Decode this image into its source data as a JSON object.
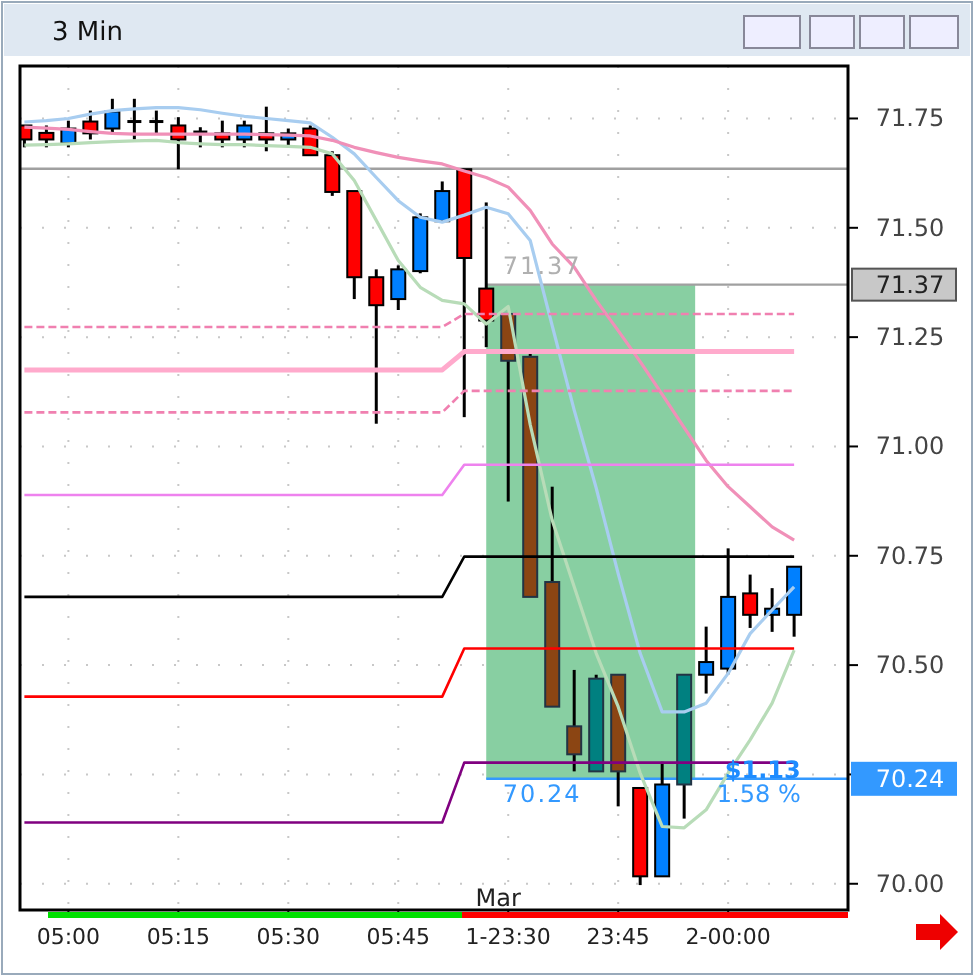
{
  "chart_data": {
    "type": "candlestick",
    "title": "3 Min",
    "categories": [
      null,
      null,
      "05:00",
      null,
      null,
      null,
      null,
      "05:15",
      null,
      null,
      null,
      null,
      "05:30",
      null,
      null,
      null,
      null,
      "05:45",
      null,
      null,
      null,
      null,
      "1-23:30",
      null,
      null,
      null,
      null,
      "23:45",
      null,
      null,
      null,
      null,
      "2-00:00",
      null,
      null,
      null
    ],
    "ohlc": [
      [
        71.734,
        71.734,
        71.684,
        71.702
      ],
      [
        71.717,
        71.734,
        71.684,
        71.702
      ],
      [
        71.693,
        71.745,
        71.684,
        71.727
      ],
      [
        71.743,
        71.768,
        71.702,
        71.716
      ],
      [
        71.727,
        71.795,
        71.714,
        71.766
      ],
      [
        71.743,
        71.795,
        71.702,
        71.743
      ],
      [
        71.743,
        71.768,
        71.714,
        71.743
      ],
      [
        71.734,
        71.753,
        71.634,
        71.702
      ],
      [
        71.719,
        71.73,
        71.684,
        71.719
      ],
      [
        71.716,
        71.745,
        71.684,
        71.702
      ],
      [
        71.702,
        71.745,
        71.684,
        71.734
      ],
      [
        71.716,
        71.777,
        71.675,
        71.702
      ],
      [
        71.702,
        71.727,
        71.684,
        71.716
      ],
      [
        71.727,
        71.734,
        71.666,
        71.666
      ],
      [
        71.666,
        71.675,
        71.573,
        71.582
      ],
      [
        71.584,
        71.584,
        71.337,
        71.387
      ],
      [
        71.387,
        71.405,
        71.052,
        71.323
      ],
      [
        71.337,
        71.414,
        71.312,
        71.405
      ],
      [
        71.401,
        71.533,
        71.396,
        71.524
      ],
      [
        71.515,
        71.606,
        71.513,
        71.584
      ],
      [
        71.634,
        71.634,
        71.067,
        71.431
      ],
      [
        71.361,
        71.558,
        71.227,
        71.288
      ],
      [
        71.303,
        71.303,
        70.874,
        71.196
      ],
      [
        71.205,
        71.215,
        70.656,
        70.656
      ],
      [
        70.69,
        70.908,
        70.405,
        70.405
      ],
      [
        70.36,
        70.489,
        70.257,
        70.296
      ],
      [
        70.257,
        70.478,
        70.257,
        70.469
      ],
      [
        70.478,
        70.478,
        70.177,
        70.257
      ],
      [
        70.219,
        70.219,
        69.997,
        70.017
      ],
      [
        70.017,
        70.279,
        70.017,
        70.227
      ],
      [
        70.227,
        70.478,
        70.149,
        70.478
      ],
      [
        70.478,
        70.588,
        70.435,
        70.507
      ],
      [
        70.492,
        70.767,
        70.479,
        70.656
      ],
      [
        70.664,
        70.707,
        70.585,
        70.615
      ],
      [
        70.615,
        70.676,
        70.576,
        70.629
      ],
      [
        70.615,
        70.725,
        70.565,
        70.725
      ]
    ],
    "colors": [
      "#ff0000",
      "#ff0000",
      "#0080ff",
      "#ff0000",
      "#0080ff",
      "#000000",
      "#000000",
      "#ff0000",
      "#000000",
      "#ff0000",
      "#0080ff",
      "#ff0000",
      "#0080ff",
      "#ff0000",
      "#ff0000",
      "#ff0000",
      "#ff0000",
      "#0080ff",
      "#0080ff",
      "#0080ff",
      "#ff0000",
      "#ff0000",
      "#8b4513",
      "#8b4513",
      "#8b4513",
      "#8b4513",
      "#008080",
      "#8b4513",
      "#ff0000",
      "#0080ff",
      "#008080",
      "#0080ff",
      "#0080ff",
      "#ff0000",
      "#0080ff",
      "#0080ff"
    ],
    "series": [
      {
        "type": "line",
        "color": "#a8cdf0",
        "values": [
          71.742,
          71.745,
          71.75,
          71.76,
          71.768,
          71.772,
          71.775,
          71.775,
          71.77,
          71.762,
          71.755,
          71.75,
          71.745,
          71.74,
          71.707,
          71.669,
          71.615,
          71.562,
          71.524,
          71.513,
          71.529,
          71.547,
          71.532,
          71.471,
          71.276,
          71.083,
          70.905,
          70.709,
          70.527,
          70.393,
          70.393,
          70.413,
          70.481,
          70.572,
          70.626,
          70.679
        ]
      },
      {
        "type": "line",
        "color": "#f090b8",
        "values": [
          71.73,
          71.728,
          71.725,
          71.72,
          71.716,
          71.714,
          71.714,
          71.714,
          71.714,
          71.714,
          71.714,
          71.713,
          71.712,
          71.71,
          71.7,
          71.684,
          71.672,
          71.661,
          71.653,
          71.646,
          71.63,
          71.615,
          71.593,
          71.54,
          71.463,
          71.41,
          71.334,
          71.265,
          71.194,
          71.119,
          71.043,
          70.968,
          70.908,
          70.862,
          70.816,
          70.786
        ]
      },
      {
        "type": "line",
        "color": "#b8dcb8",
        "values": [
          71.689,
          71.69,
          71.692,
          71.695,
          71.697,
          71.699,
          71.7,
          71.695,
          71.692,
          71.69,
          71.69,
          71.688,
          71.686,
          71.684,
          71.669,
          71.608,
          71.517,
          71.425,
          71.364,
          71.334,
          71.326,
          71.28,
          71.32,
          71.05,
          70.831,
          70.679,
          70.527,
          70.405,
          70.253,
          70.131,
          70.128,
          70.169,
          70.253,
          70.329,
          70.413,
          70.534
        ]
      },
      {
        "type": "step",
        "color": "#ee82ee",
        "values": [
          70.889,
          70.889,
          70.889,
          70.889,
          70.889,
          70.889,
          70.889,
          70.889,
          70.889,
          70.889,
          70.889,
          70.889,
          70.889,
          70.889,
          70.889,
          70.889,
          70.889,
          70.889,
          70.889,
          70.889,
          70.958,
          70.958,
          70.958,
          70.958,
          70.958,
          70.958,
          70.958,
          70.958,
          70.958,
          70.958,
          70.958,
          70.958,
          70.958,
          70.958,
          70.958,
          70.958
        ]
      },
      {
        "type": "step",
        "color": "#000000",
        "values": [
          70.656,
          70.656,
          70.656,
          70.656,
          70.656,
          70.656,
          70.656,
          70.656,
          70.656,
          70.656,
          70.656,
          70.656,
          70.656,
          70.656,
          70.656,
          70.656,
          70.656,
          70.656,
          70.656,
          70.656,
          70.748,
          70.748,
          70.748,
          70.748,
          70.748,
          70.748,
          70.748,
          70.748,
          70.748,
          70.748,
          70.748,
          70.748,
          70.748,
          70.748,
          70.748,
          70.748
        ]
      },
      {
        "type": "step",
        "color": "#ff0000",
        "values": [
          70.428,
          70.428,
          70.428,
          70.428,
          70.428,
          70.428,
          70.428,
          70.428,
          70.428,
          70.428,
          70.428,
          70.428,
          70.428,
          70.428,
          70.428,
          70.428,
          70.428,
          70.428,
          70.428,
          70.428,
          70.538,
          70.538,
          70.538,
          70.538,
          70.538,
          70.538,
          70.538,
          70.538,
          70.538,
          70.538,
          70.538,
          70.538,
          70.538,
          70.538,
          70.538,
          70.538
        ]
      },
      {
        "type": "step",
        "color": "#800080",
        "values": [
          70.14,
          70.14,
          70.14,
          70.14,
          70.14,
          70.14,
          70.14,
          70.14,
          70.14,
          70.14,
          70.14,
          70.14,
          70.14,
          70.14,
          70.14,
          70.14,
          70.14,
          70.14,
          70.14,
          70.14,
          70.277,
          70.277,
          70.277,
          70.277,
          70.277,
          70.277,
          70.277,
          70.277,
          70.277,
          70.277,
          70.277,
          70.277,
          70.277,
          70.277,
          70.277,
          70.277
        ]
      },
      {
        "type": "step",
        "color": "#ffaacc",
        "values": [
          71.175,
          71.175,
          71.175,
          71.175,
          71.175,
          71.175,
          71.175,
          71.175,
          71.175,
          71.175,
          71.175,
          71.175,
          71.175,
          71.175,
          71.175,
          71.175,
          71.175,
          71.175,
          71.175,
          71.175,
          71.217,
          71.217,
          71.217,
          71.217,
          71.217,
          71.217,
          71.217,
          71.217,
          71.217,
          71.217,
          71.217,
          71.217,
          71.217,
          71.217,
          71.217,
          71.217
        ]
      },
      {
        "type": "step",
        "color": "#f080b0",
        "line_style": "dashed",
        "values": [
          71.273,
          71.273,
          71.273,
          71.273,
          71.273,
          71.273,
          71.273,
          71.273,
          71.273,
          71.273,
          71.273,
          71.273,
          71.273,
          71.273,
          71.273,
          71.273,
          71.273,
          71.273,
          71.273,
          71.273,
          71.303,
          71.303,
          71.303,
          71.303,
          71.303,
          71.303,
          71.303,
          71.303,
          71.303,
          71.303,
          71.303,
          71.303,
          71.303,
          71.303,
          71.303,
          71.303
        ]
      },
      {
        "type": "step",
        "color": "#f080b0",
        "line_style": "dashed",
        "values": [
          71.078,
          71.078,
          71.078,
          71.078,
          71.078,
          71.078,
          71.078,
          71.078,
          71.078,
          71.078,
          71.078,
          71.078,
          71.078,
          71.078,
          71.078,
          71.078,
          71.078,
          71.078,
          71.078,
          71.078,
          71.127,
          71.127,
          71.127,
          71.127,
          71.127,
          71.127,
          71.127,
          71.127,
          71.127,
          71.127,
          71.127,
          71.127,
          71.127,
          71.127,
          71.127,
          71.127
        ]
      }
    ],
    "ylim": [
      69.94,
      71.87
    ],
    "yticks": [
      {
        "value": 70,
        "label": "70.00"
      },
      {
        "value": 70.25,
        "label": null
      },
      {
        "value": 70.5,
        "label": "70.50"
      },
      {
        "value": 70.75,
        "label": "70.75"
      },
      {
        "value": 71,
        "label": "71.00"
      },
      {
        "value": 71.25,
        "label": "71.25"
      },
      {
        "value": 71.5,
        "label": "71.50"
      },
      {
        "value": 71.75,
        "label": "71.75"
      }
    ],
    "grid": true,
    "ref_lines": [
      {
        "axis": "y",
        "value": 71.635,
        "color": "#a0a0a0"
      },
      {
        "axis": "y",
        "value": 71.37,
        "label": "71.37",
        "color": "#a0a0a0"
      },
      {
        "axis": "y",
        "value": 70.24,
        "label": "70.24",
        "color": "#3399ff"
      }
    ],
    "bands": [
      {
        "axis": "y",
        "from": 70.24,
        "to": 71.37,
        "color": "#88cfa2"
      }
    ],
    "annotations": [
      "71.37",
      "70.24",
      "$1.13",
      "1.58 %",
      "Mar"
    ]
  }
}
